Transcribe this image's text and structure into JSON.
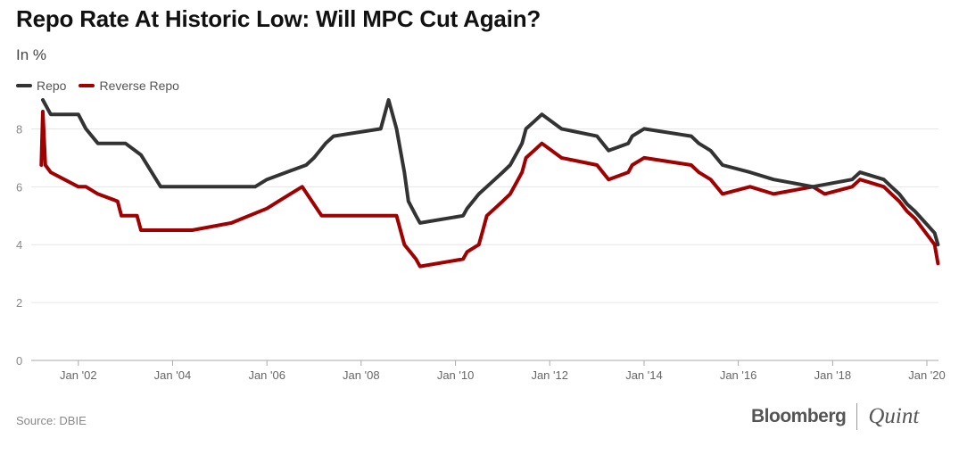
{
  "header": {
    "title": "Repo Rate At Historic Low: Will MPC Cut Again?",
    "subtitle": "In %"
  },
  "footer": {
    "source": "Source: DBIE",
    "brand_left": "Bloomberg",
    "brand_right": "Quint"
  },
  "colors": {
    "repo": "#333333",
    "reverse_repo": "#a00000",
    "grid": "#e6e6e6",
    "axis": "#aaaaaa"
  },
  "chart_data": {
    "type": "line",
    "title": "Repo Rate At Historic Low: Will MPC Cut Again?",
    "ylabel": "In %",
    "ylim": [
      0,
      9
    ],
    "yticks": [
      0,
      2,
      4,
      6,
      8
    ],
    "xlim": [
      "2001-01-01",
      "2020-03-31"
    ],
    "xticks": [
      {
        "label": "Jan '02",
        "date": "2002-01-01"
      },
      {
        "label": "Jan '04",
        "date": "2004-01-01"
      },
      {
        "label": "Jan '06",
        "date": "2006-01-01"
      },
      {
        "label": "Jan '08",
        "date": "2008-01-01"
      },
      {
        "label": "Jan '10",
        "date": "2010-01-01"
      },
      {
        "label": "Jan '12",
        "date": "2012-01-01"
      },
      {
        "label": "Jan '14",
        "date": "2014-01-01"
      },
      {
        "label": "Jan '16",
        "date": "2016-01-01"
      },
      {
        "label": "Jan '18",
        "date": "2018-01-01"
      },
      {
        "label": "Jan '20",
        "date": "2020-01-01"
      }
    ],
    "grid": true,
    "legend_position": "top-left",
    "series": [
      {
        "name": "Repo",
        "color": "#333333",
        "points": [
          [
            "2001-04-01",
            9.0
          ],
          [
            "2001-05-01",
            8.75
          ],
          [
            "2001-06-01",
            8.5
          ],
          [
            "2002-01-01",
            8.5
          ],
          [
            "2002-03-01",
            8.0
          ],
          [
            "2002-06-01",
            7.5
          ],
          [
            "2003-01-01",
            7.5
          ],
          [
            "2003-05-01",
            7.1
          ],
          [
            "2003-10-01",
            6.0
          ],
          [
            "2004-01-01",
            6.0
          ],
          [
            "2005-10-01",
            6.0
          ],
          [
            "2006-01-01",
            6.25
          ],
          [
            "2006-06-01",
            6.5
          ],
          [
            "2006-11-01",
            6.75
          ],
          [
            "2007-01-01",
            7.0
          ],
          [
            "2007-04-01",
            7.5
          ],
          [
            "2007-06-01",
            7.75
          ],
          [
            "2008-06-01",
            8.0
          ],
          [
            "2008-07-01",
            8.5
          ],
          [
            "2008-08-01",
            9.0
          ],
          [
            "2008-10-01",
            8.0
          ],
          [
            "2008-12-01",
            6.5
          ],
          [
            "2009-01-01",
            5.5
          ],
          [
            "2009-03-01",
            5.0
          ],
          [
            "2009-04-01",
            4.75
          ],
          [
            "2010-03-01",
            5.0
          ],
          [
            "2010-04-01",
            5.25
          ],
          [
            "2010-07-01",
            5.75
          ],
          [
            "2010-09-01",
            6.0
          ],
          [
            "2010-11-01",
            6.25
          ],
          [
            "2011-01-01",
            6.5
          ],
          [
            "2011-03-01",
            6.75
          ],
          [
            "2011-05-01",
            7.25
          ],
          [
            "2011-06-01",
            7.5
          ],
          [
            "2011-07-01",
            8.0
          ],
          [
            "2011-09-01",
            8.25
          ],
          [
            "2011-11-01",
            8.5
          ],
          [
            "2012-04-01",
            8.0
          ],
          [
            "2013-01-01",
            7.75
          ],
          [
            "2013-04-01",
            7.25
          ],
          [
            "2013-09-01",
            7.5
          ],
          [
            "2013-10-01",
            7.75
          ],
          [
            "2014-01-01",
            8.0
          ],
          [
            "2015-01-01",
            7.75
          ],
          [
            "2015-03-01",
            7.5
          ],
          [
            "2015-06-01",
            7.25
          ],
          [
            "2015-09-01",
            6.75
          ],
          [
            "2016-04-01",
            6.5
          ],
          [
            "2016-10-01",
            6.25
          ],
          [
            "2017-08-01",
            6.0
          ],
          [
            "2018-06-01",
            6.25
          ],
          [
            "2018-08-01",
            6.5
          ],
          [
            "2019-02-01",
            6.25
          ],
          [
            "2019-04-01",
            6.0
          ],
          [
            "2019-06-01",
            5.75
          ],
          [
            "2019-08-01",
            5.4
          ],
          [
            "2019-10-01",
            5.15
          ],
          [
            "2020-03-01",
            4.4
          ],
          [
            "2020-03-27",
            4.0
          ]
        ]
      },
      {
        "name": "Reverse Repo",
        "color": "#a00000",
        "points": [
          [
            "2001-03-20",
            6.75
          ],
          [
            "2001-04-01",
            8.6
          ],
          [
            "2001-04-20",
            6.75
          ],
          [
            "2001-06-01",
            6.5
          ],
          [
            "2002-01-01",
            6.0
          ],
          [
            "2002-03-01",
            6.0
          ],
          [
            "2002-06-01",
            5.75
          ],
          [
            "2002-11-01",
            5.5
          ],
          [
            "2002-12-01",
            5.0
          ],
          [
            "2003-04-01",
            5.0
          ],
          [
            "2003-05-01",
            4.5
          ],
          [
            "2004-01-01",
            4.5
          ],
          [
            "2004-06-01",
            4.5
          ],
          [
            "2005-04-01",
            4.75
          ],
          [
            "2006-01-01",
            5.25
          ],
          [
            "2006-04-01",
            5.5
          ],
          [
            "2006-07-01",
            5.75
          ],
          [
            "2006-10-01",
            6.0
          ],
          [
            "2007-03-01",
            5.0
          ],
          [
            "2008-10-01",
            5.0
          ],
          [
            "2008-12-01",
            4.0
          ],
          [
            "2009-03-01",
            3.5
          ],
          [
            "2009-04-01",
            3.25
          ],
          [
            "2010-03-01",
            3.5
          ],
          [
            "2010-04-01",
            3.75
          ],
          [
            "2010-07-01",
            4.0
          ],
          [
            "2010-08-01",
            4.5
          ],
          [
            "2010-09-01",
            5.0
          ],
          [
            "2010-11-01",
            5.25
          ],
          [
            "2011-01-01",
            5.5
          ],
          [
            "2011-03-01",
            5.75
          ],
          [
            "2011-05-01",
            6.25
          ],
          [
            "2011-06-01",
            6.5
          ],
          [
            "2011-07-01",
            7.0
          ],
          [
            "2011-09-01",
            7.25
          ],
          [
            "2011-11-01",
            7.5
          ],
          [
            "2012-04-01",
            7.0
          ],
          [
            "2013-01-01",
            6.75
          ],
          [
            "2013-04-01",
            6.25
          ],
          [
            "2013-09-01",
            6.5
          ],
          [
            "2013-10-01",
            6.75
          ],
          [
            "2014-01-01",
            7.0
          ],
          [
            "2015-01-01",
            6.75
          ],
          [
            "2015-03-01",
            6.5
          ],
          [
            "2015-06-01",
            6.25
          ],
          [
            "2015-09-01",
            5.75
          ],
          [
            "2016-04-01",
            6.0
          ],
          [
            "2016-10-01",
            5.75
          ],
          [
            "2017-08-01",
            6.0
          ],
          [
            "2017-11-01",
            5.75
          ],
          [
            "2018-06-01",
            6.0
          ],
          [
            "2018-08-01",
            6.25
          ],
          [
            "2019-02-01",
            6.0
          ],
          [
            "2019-04-01",
            5.75
          ],
          [
            "2019-06-01",
            5.5
          ],
          [
            "2019-08-01",
            5.15
          ],
          [
            "2019-10-01",
            4.9
          ],
          [
            "2020-03-01",
            4.0
          ],
          [
            "2020-03-27",
            3.35
          ]
        ]
      }
    ]
  }
}
